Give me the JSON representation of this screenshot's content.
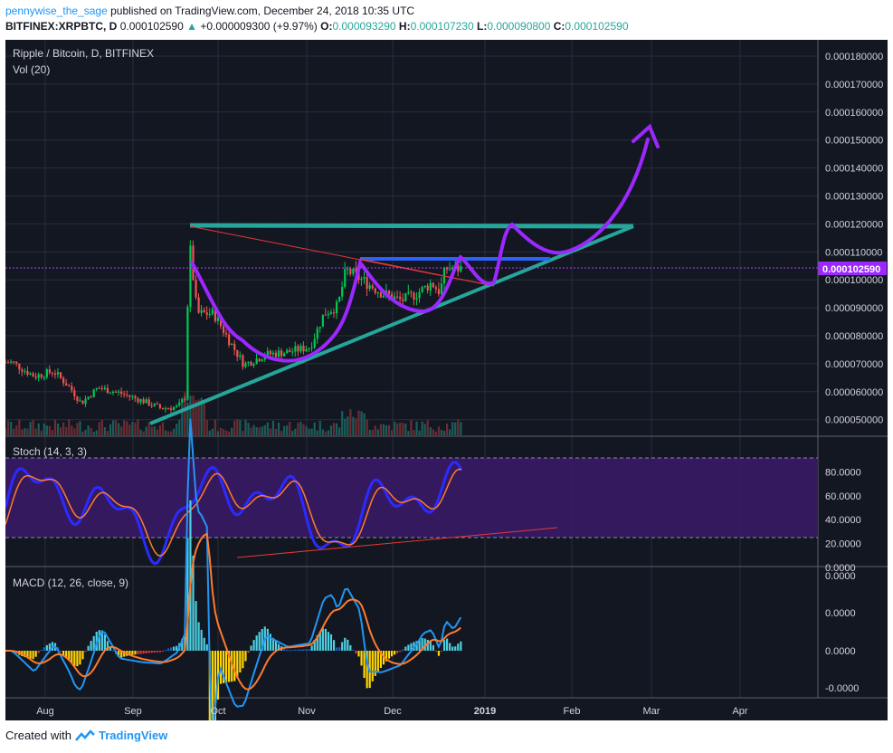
{
  "header": {
    "author": "pennywise_the_sage",
    "published": "published on TradingView.com, December 24, 2018 10:35 UTC",
    "symbol": "BITFINEX:XRPBTC, D",
    "last": "0.000102590",
    "change": "+0.000009300 (+9.97%)",
    "o_label": "O:",
    "o": "0.000093290",
    "h_label": "H:",
    "h": "0.000107230",
    "l_label": "L:",
    "l": "0.000090800",
    "c_label": "C:",
    "c": "0.000102590"
  },
  "footer": {
    "created": "Created with",
    "brand": "TradingView"
  },
  "colors": {
    "bg": "#131722",
    "up": "#00c853",
    "down": "#ef5350",
    "teal": "#26a69a",
    "purple": "#9c27ff",
    "blue": "#2962ff",
    "orange": "#ff7b2c"
  },
  "chart_data": [
    {
      "type": "candlestick",
      "title": "Ripple / Bitcoin, D, BITFINEX",
      "subtitle": "Vol (20)",
      "x_ticks": [
        "Aug",
        "Sep",
        "Oct",
        "Nov",
        "Dec",
        "2019",
        "Feb",
        "Mar",
        "Apr"
      ],
      "y_ticks": [
        "0.000180000",
        "0.000170000",
        "0.000160000",
        "0.000150000",
        "0.000140000",
        "0.000130000",
        "0.000120000",
        "0.000110000",
        "0.000100000",
        "0.000090000",
        "0.000080000",
        "0.000070000",
        "0.000060000",
        "0.000050000"
      ],
      "ylim": [
        4.33e-05,
        0.0001858
      ],
      "last_price_label": "0.000102590",
      "close_series": {
        "dates": [
          "2018-07-20",
          "2018-07-28",
          "2018-08-04",
          "2018-08-10",
          "2018-08-14",
          "2018-08-20",
          "2018-08-28",
          "2018-09-05",
          "2018-09-12",
          "2018-09-18",
          "2018-09-21",
          "2018-09-22",
          "2018-09-25",
          "2018-10-01",
          "2018-10-08",
          "2018-10-12",
          "2018-10-20",
          "2018-10-28",
          "2018-11-05",
          "2018-11-10",
          "2018-11-15",
          "2018-11-18",
          "2018-11-24",
          "2018-12-01",
          "2018-12-08",
          "2018-12-14",
          "2018-12-19",
          "2018-12-22",
          "2018-12-24"
        ],
        "close": [
          6.6e-05,
          6.05e-05,
          6.25e-05,
          5.6e-05,
          5e-05,
          5.6e-05,
          5.4e-05,
          5.1e-05,
          4.8e-05,
          4.85e-05,
          5.3e-05,
          0.000115,
          8.5e-05,
          8.5e-05,
          7.2e-05,
          6.5e-05,
          6.9e-05,
          7e-05,
          7.2e-05,
          8.5e-05,
          8.8e-05,
          0.000102,
          9.8e-05,
          9.3e-05,
          9e-05,
          9.3e-05,
          9.7e-05,
          9.33e-05,
          0.0001026
        ]
      }
    },
    {
      "type": "line",
      "title": "Stoch (14, 3, 3)",
      "y_ticks": [
        "80.0000",
        "60.0000",
        "40.0000",
        "20.0000",
        "0.0000"
      ],
      "ylim": [
        0,
        100
      ],
      "bands": [
        20,
        80
      ]
    },
    {
      "type": "line",
      "title": "MACD (12, 26, close, 9)",
      "y_ticks": [
        "0.0000",
        "0.0000",
        "0.0000",
        "-0.0000"
      ]
    }
  ]
}
